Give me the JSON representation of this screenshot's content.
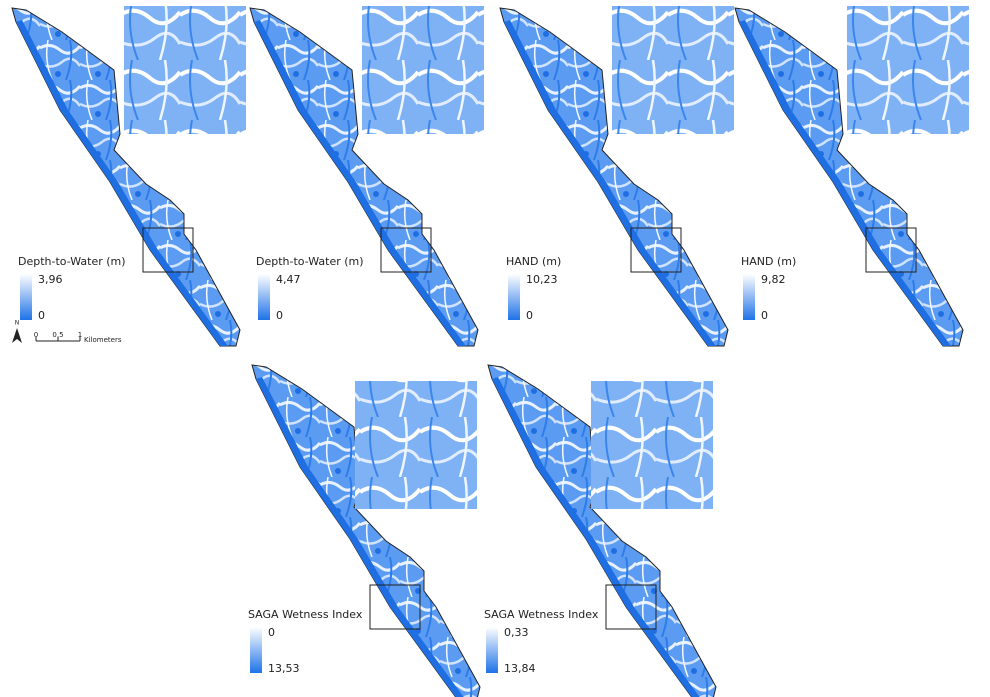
{
  "panels": [
    {
      "legend_title": "Depth-to-Water (m)",
      "top_label": "3,96",
      "bottom_label": "0"
    },
    {
      "legend_title": "Depth-to-Water (m)",
      "top_label": "4,47",
      "bottom_label": "0"
    },
    {
      "legend_title": "HAND (m)",
      "top_label": "10,23",
      "bottom_label": "0"
    },
    {
      "legend_title": "HAND (m)",
      "top_label": "9,82",
      "bottom_label": "0"
    },
    {
      "legend_title": "SAGA Wetness Index",
      "top_label": "0",
      "bottom_label": "13,53"
    },
    {
      "legend_title": "SAGA Wetness Index",
      "top_label": "0,33",
      "bottom_label": "13,84"
    }
  ],
  "scale_bar": {
    "north": "N",
    "ticks": [
      "0",
      "0.5",
      "1"
    ],
    "unit": "Kilometers"
  }
}
